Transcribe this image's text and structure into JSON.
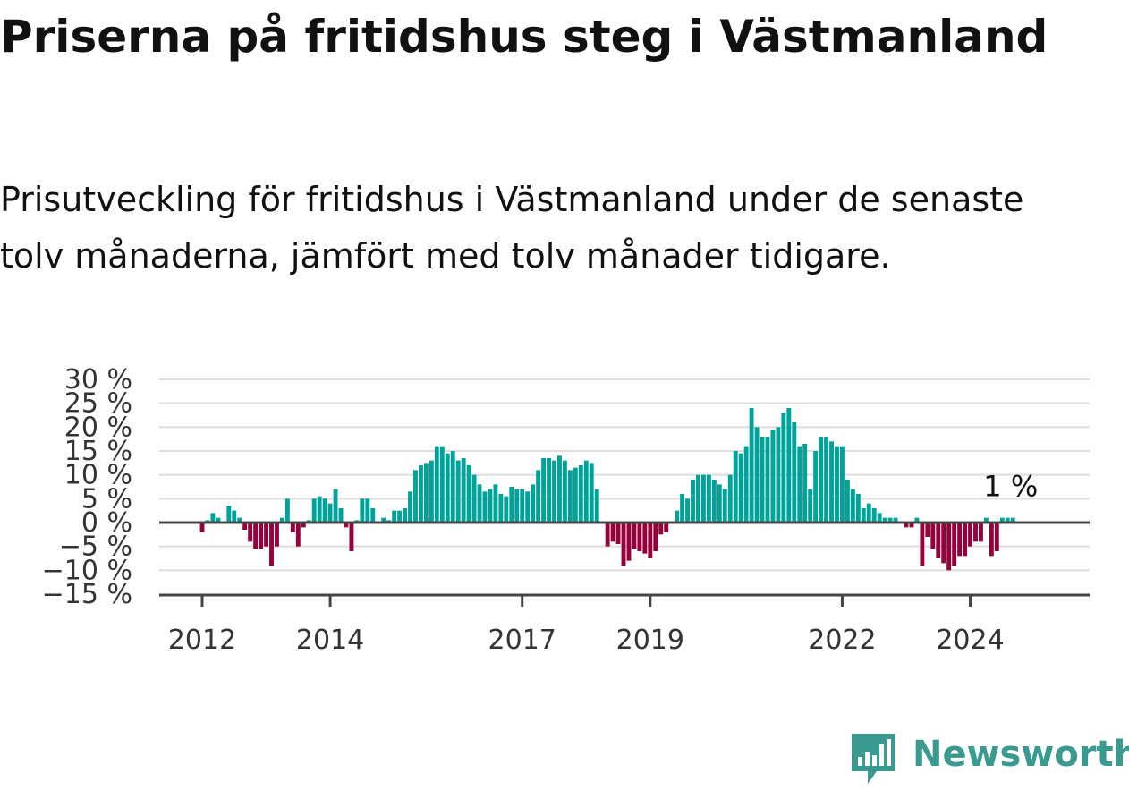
{
  "header": {
    "title": "Priserna på fritidshus steg i Västmanland",
    "subtitle": "Prisutveckling för fritidshus i Västmanland under de senaste tolv månaderna, jämfört med tolv månader tidigare."
  },
  "brand": {
    "name": "Newsworthy",
    "icon": "newsworthy-logo-icon",
    "color": "#3a9a8f"
  },
  "chart_data": {
    "type": "bar",
    "x_start": "2012-01",
    "x_end": "2025-03",
    "ylim": [
      -15,
      30
    ],
    "yticks": [
      30,
      25,
      20,
      15,
      10,
      5,
      0,
      -5,
      -10,
      -15
    ],
    "ytick_labels": [
      "30 %",
      "25 %",
      "20 %",
      "15 %",
      "10 %",
      "5 %",
      "0 %",
      "−5 %",
      "−10 %",
      "−15 %"
    ],
    "xtick_labels": [
      "2012",
      "2014",
      "2017",
      "2019",
      "2022",
      "2024"
    ],
    "xtick_years": [
      2012,
      2014,
      2017,
      2019,
      2022,
      2024
    ],
    "positive_color": "#00a39a",
    "negative_color": "#98003c",
    "grid": true,
    "last_value_label": "1 %",
    "values": [
      -2,
      0.5,
      2,
      1,
      0,
      3.5,
      2.5,
      1,
      -1.5,
      -4,
      -5.5,
      -5.5,
      -5,
      -9,
      -5,
      1,
      5,
      -2,
      -5,
      -1,
      0.5,
      5,
      5.5,
      5,
      4,
      7,
      3,
      -1,
      -6,
      0.5,
      5,
      5,
      3,
      0,
      1,
      0.5,
      2.5,
      2.5,
      3,
      6.5,
      11,
      12,
      12.5,
      13,
      16,
      16,
      14.5,
      15,
      13,
      13.5,
      12,
      10,
      8,
      6.5,
      7,
      8,
      6,
      5.5,
      7.5,
      7,
      7,
      6.5,
      8,
      11,
      13.5,
      13.5,
      13,
      14,
      13,
      11,
      11.5,
      12,
      13,
      12.5,
      7,
      0,
      -5,
      -4,
      -4.5,
      -9,
      -8,
      -5.5,
      -6,
      -6.5,
      -7.5,
      -6,
      -2.5,
      -2,
      0,
      2.5,
      6,
      5,
      9,
      10,
      10,
      10,
      9,
      8,
      7,
      10,
      15,
      14.5,
      16,
      24,
      20,
      18,
      18,
      19.5,
      20,
      23,
      24,
      21,
      16,
      16.5,
      7,
      15,
      18,
      18,
      17,
      16,
      16,
      9,
      7,
      6,
      3,
      4,
      3,
      2,
      1,
      1,
      1,
      0,
      -1,
      -1,
      1,
      -9,
      -3,
      -5.5,
      -7.5,
      -8.5,
      -10,
      -9,
      -7,
      -7,
      -5,
      -4,
      -4,
      1,
      -7,
      -6,
      1,
      1,
      1
    ]
  }
}
